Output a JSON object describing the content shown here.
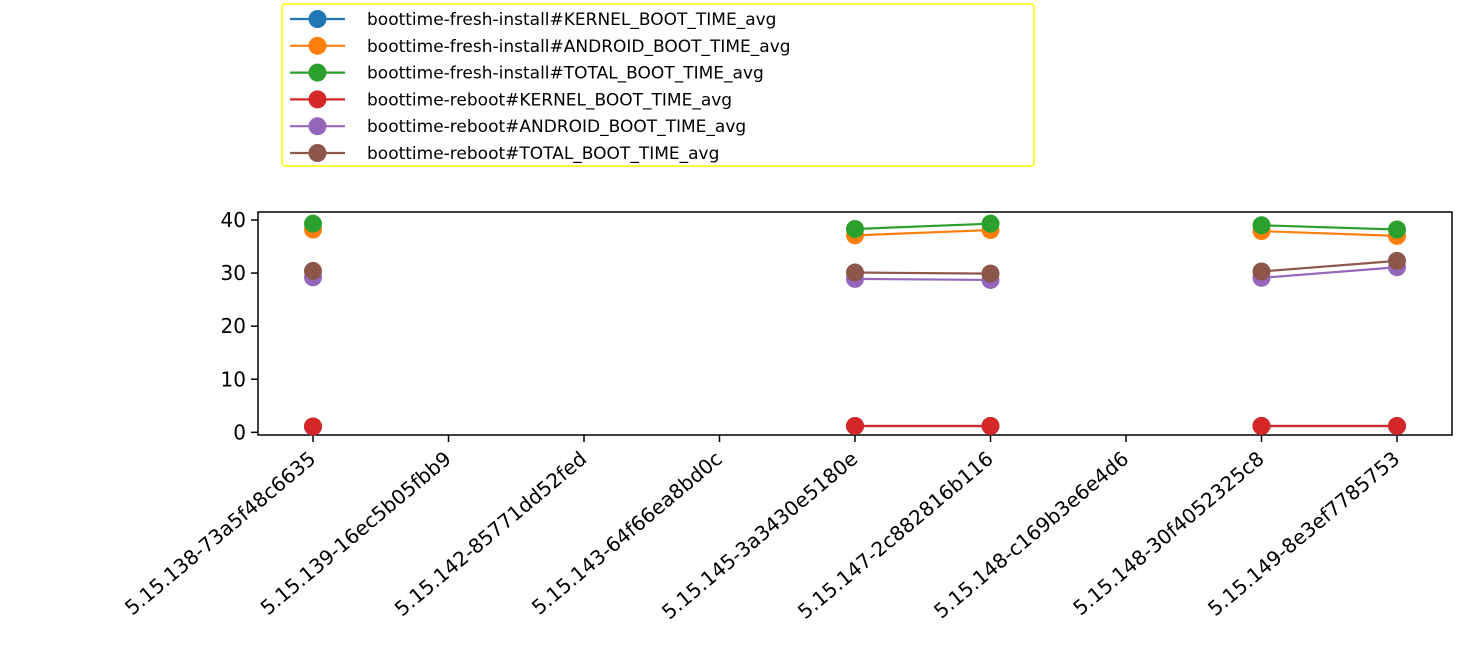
{
  "chart_data": {
    "type": "line",
    "title": "",
    "xlabel": "",
    "ylabel": "",
    "categories": [
      "5.15.138-73a5f48c6635",
      "5.15.139-16ec5b05fbb9",
      "5.15.142-85771dd52fed",
      "5.15.143-64f66ea8bd0c",
      "5.15.145-3a3430e5180e",
      "5.15.147-2c882816b116",
      "5.15.148-c169b3e6e4d6",
      "5.15.148-30f4052325c8",
      "5.15.149-8e3ef7785753"
    ],
    "ylim": [
      -0.5,
      41.5
    ],
    "yticks": [
      0,
      10,
      20,
      30,
      40
    ],
    "grid": false,
    "legend_position": "top-left",
    "series": [
      {
        "name": "boottime-fresh-install#KERNEL_BOOT_TIME_avg",
        "color": "#1f77b4",
        "values": [
          1.1,
          null,
          null,
          null,
          1.2,
          1.2,
          null,
          1.2,
          1.2
        ]
      },
      {
        "name": "boottime-fresh-install#ANDROID_BOOT_TIME_avg",
        "color": "#ff7f0e",
        "values": [
          38.2,
          null,
          null,
          null,
          37.1,
          38.1,
          null,
          37.9,
          37.0
        ]
      },
      {
        "name": "boottime-fresh-install#TOTAL_BOOT_TIME_avg",
        "color": "#2ca02c",
        "values": [
          39.3,
          null,
          null,
          null,
          38.3,
          39.3,
          null,
          39.0,
          38.2
        ]
      },
      {
        "name": "boottime-reboot#KERNEL_BOOT_TIME_avg",
        "color": "#d62728",
        "values": [
          1.1,
          null,
          null,
          null,
          1.2,
          1.2,
          null,
          1.2,
          1.2
        ]
      },
      {
        "name": "boottime-reboot#ANDROID_BOOT_TIME_avg",
        "color": "#9467bd",
        "values": [
          29.2,
          null,
          null,
          null,
          28.9,
          28.7,
          null,
          29.1,
          31.1
        ]
      },
      {
        "name": "boottime-reboot#TOTAL_BOOT_TIME_avg",
        "color": "#8c564b",
        "values": [
          30.4,
          null,
          null,
          null,
          30.1,
          29.9,
          null,
          30.3,
          32.3
        ]
      }
    ]
  }
}
